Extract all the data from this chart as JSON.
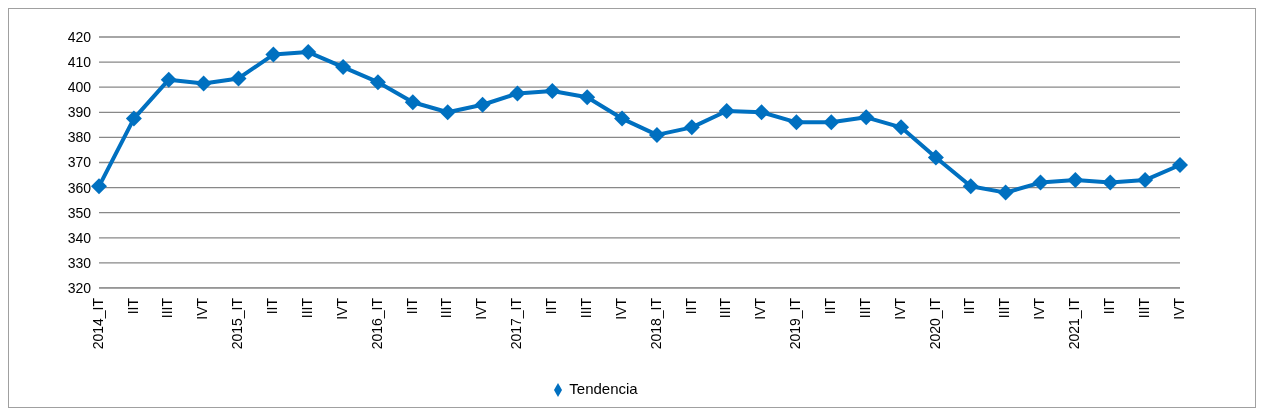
{
  "chart_data": {
    "type": "line",
    "categories": [
      "2014_IT",
      "IIT",
      "IIIT",
      "IVT",
      "2015_IT",
      "IIT",
      "IIIT",
      "IVT",
      "2016_IT",
      "IIT",
      "IIIT",
      "IVT",
      "2017_IT",
      "IIT",
      "IIIT",
      "IVT",
      "2018_IT",
      "IIT",
      "IIIT",
      "IVT",
      "2019_IT",
      "IIT",
      "IIIT",
      "IVT",
      "2020_IT",
      "IIT",
      "IIIT",
      "IVT",
      "2021_IT",
      "IIT",
      "IIIT",
      "IVT"
    ],
    "series": [
      {
        "name": "Tendencia",
        "color": "#0070c0",
        "values": [
          360.5,
          387.5,
          403,
          401.5,
          403.5,
          413,
          414,
          408,
          402,
          394,
          390,
          393,
          397.5,
          398.5,
          396,
          387.5,
          381,
          384,
          390.5,
          390,
          386,
          386,
          388,
          384,
          372,
          360.5,
          358,
          362,
          363,
          362,
          363,
          369
        ]
      }
    ],
    "ylim": [
      320,
      420
    ],
    "yticks": [
      320,
      330,
      340,
      350,
      360,
      370,
      380,
      390,
      400,
      410,
      420
    ],
    "grid": "y",
    "legend": "bottom",
    "marker": "diamond",
    "line_style": "solid"
  }
}
